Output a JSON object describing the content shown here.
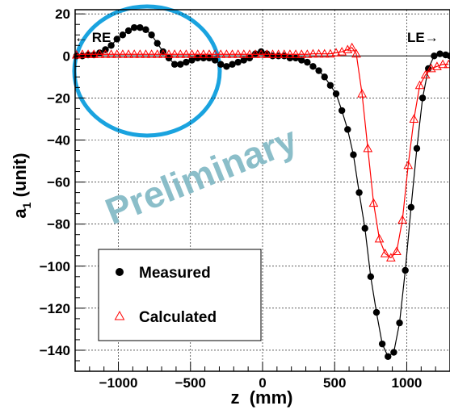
{
  "chart_data": {
    "type": "line",
    "xlabel": "z  (mm)",
    "ylabel": "a1 (unit)",
    "ylabel_main": "a",
    "ylabel_sub": "1",
    "ylabel_rest": " (unit)",
    "xlim": [
      -1300,
      1300
    ],
    "ylim": [
      -150,
      22
    ],
    "x_ticks": [
      -1000,
      -500,
      0,
      500,
      1000
    ],
    "x_tick_labels": [
      "−1000",
      "−500",
      "0",
      "500",
      "1000"
    ],
    "y_ticks": [
      20,
      0,
      -20,
      -40,
      -60,
      -80,
      -100,
      -120,
      -140
    ],
    "y_tick_labels": [
      "20",
      "0",
      "−20",
      "−40",
      "−60",
      "−80",
      "−100",
      "−120",
      "−140"
    ],
    "grid": true,
    "legend_placement": "bottom-left",
    "annotations": {
      "left_end": "← RE",
      "right_end": "LE→",
      "watermark": "Preliminary"
    },
    "highlight": {
      "shape": "circle",
      "color": "#1aa3df",
      "center_x": -900,
      "center_y": 0,
      "note": "region around RE bump"
    },
    "series": [
      {
        "name": "Measured",
        "marker": "filled-circle",
        "color": "#000000",
        "x": [
          -1290,
          -1250,
          -1210,
          -1170,
          -1130,
          -1090,
          -1050,
          -1010,
          -970,
          -930,
          -890,
          -850,
          -810,
          -770,
          -730,
          -690,
          -650,
          -610,
          -570,
          -530,
          -490,
          -450,
          -410,
          -370,
          -330,
          -290,
          -250,
          -210,
          -170,
          -130,
          -90,
          -50,
          -10,
          30,
          70,
          110,
          150,
          190,
          230,
          270,
          310,
          350,
          390,
          430,
          470,
          510,
          550,
          590,
          630,
          670,
          710,
          750,
          790,
          830,
          870,
          910,
          950,
          990,
          1030,
          1070,
          1110,
          1150,
          1190,
          1230,
          1270,
          1300
        ],
        "y": [
          0,
          0,
          0.5,
          0.5,
          1.5,
          3,
          5,
          8,
          10,
          12,
          13.5,
          13.5,
          12.5,
          10,
          6,
          2,
          -1,
          -4,
          -4,
          -3,
          -2,
          -1,
          -1,
          -1,
          -2,
          -4,
          -5,
          -4,
          -3,
          -2,
          -1,
          1,
          2,
          1,
          0,
          0,
          0,
          -1,
          -1,
          -2,
          -3,
          -5,
          -7,
          -10,
          -14,
          -18,
          -26,
          -35,
          -47,
          -65,
          -82,
          -105,
          -122,
          -137,
          -143,
          -141,
          -127,
          -102,
          -72,
          -44,
          -20,
          -6,
          0,
          1,
          0.5,
          0
        ]
      },
      {
        "name": "Calculated",
        "marker": "open-triangle",
        "color": "#ff0000",
        "x": [
          -1290,
          -1250,
          -1210,
          -1170,
          -1130,
          -1090,
          -1050,
          -1010,
          -970,
          -930,
          -890,
          -850,
          -810,
          -770,
          -730,
          -690,
          -650,
          -610,
          -570,
          -530,
          -490,
          -450,
          -410,
          -370,
          -330,
          -290,
          -250,
          -210,
          -170,
          -130,
          -90,
          -50,
          -10,
          30,
          70,
          110,
          150,
          190,
          230,
          270,
          310,
          350,
          390,
          430,
          470,
          510,
          550,
          590,
          620,
          650,
          690,
          730,
          770,
          810,
          850,
          890,
          930,
          970,
          1010,
          1050,
          1090,
          1130,
          1170,
          1210,
          1250,
          1290
        ],
        "y": [
          0.5,
          0.8,
          0.8,
          0.8,
          0.8,
          0.8,
          0.8,
          0.8,
          0.8,
          0.8,
          0.8,
          0.8,
          0.8,
          0.8,
          0.8,
          0.8,
          0.8,
          0.8,
          0.8,
          0.8,
          0.8,
          0.8,
          0.8,
          0.8,
          0.8,
          0.8,
          0.8,
          0.8,
          0.8,
          0.8,
          0.8,
          0.8,
          0.8,
          0.8,
          0.8,
          0.8,
          0.8,
          0.8,
          0.8,
          0.8,
          0.8,
          1,
          1,
          1,
          1,
          1.5,
          2,
          3,
          4,
          1,
          -18,
          -44,
          -70,
          -87,
          -94,
          -96,
          -93,
          -78,
          -52,
          -30,
          -14,
          -9,
          -6,
          -5,
          -4,
          -4
        ]
      }
    ]
  }
}
